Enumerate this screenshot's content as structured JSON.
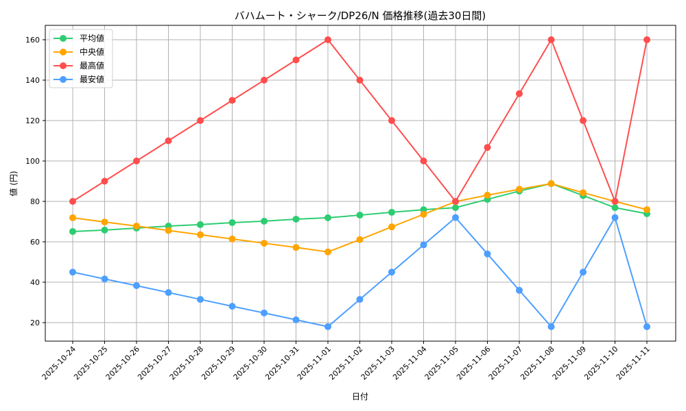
{
  "chart_data": {
    "type": "line",
    "title": "バハムート・シャーク/DP26/N 価格推移(過去30日間)",
    "xlabel": "日付",
    "ylabel": "値 (円)",
    "ylim": [
      11,
      167
    ],
    "yticks": [
      20,
      40,
      60,
      80,
      100,
      120,
      140,
      160
    ],
    "grid": true,
    "legend_position": "upper left",
    "categories": [
      "2025-10-24",
      "2025-10-25",
      "2025-10-26",
      "2025-10-27",
      "2025-10-28",
      "2025-10-29",
      "2025-10-30",
      "2025-10-31",
      "2025-11-01",
      "2025-11-02",
      "2025-11-03",
      "2025-11-04",
      "2025-11-05",
      "2025-11-06",
      "2025-11-07",
      "2025-11-08",
      "2025-11-09",
      "2025-11-10",
      "2025-11-11"
    ],
    "series": [
      {
        "name": "平均値",
        "color": "#2ecc71",
        "values": [
          65.1,
          65.8,
          66.8,
          67.8,
          68.5,
          69.5,
          70.2,
          71.2,
          71.9,
          73.2,
          74.6,
          75.9,
          76.9,
          81.0,
          85.1,
          88.8,
          82.9,
          76.9,
          73.9
        ]
      },
      {
        "name": "中央値",
        "color": "#ffa500",
        "values": [
          71.9,
          69.8,
          67.8,
          65.6,
          63.5,
          61.4,
          59.3,
          57.2,
          55.0,
          61.1,
          67.4,
          73.6,
          79.9,
          83.1,
          86.0,
          88.8,
          84.3,
          80.0,
          75.9
        ]
      },
      {
        "name": "最高値",
        "color": "#ff4d4d",
        "values": [
          80,
          90,
          100,
          110,
          120,
          130,
          140,
          150,
          160,
          140,
          120,
          100,
          80,
          106.7,
          133.3,
          160,
          120,
          80,
          160
        ]
      },
      {
        "name": "最安値",
        "color": "#4d9fff",
        "values": [
          45.0,
          41.6,
          38.3,
          34.9,
          31.5,
          28.1,
          24.8,
          21.4,
          18.0,
          31.5,
          45.0,
          58.5,
          72.0,
          54.0,
          36.0,
          18.0,
          45.0,
          72.0,
          18.0
        ]
      }
    ]
  }
}
